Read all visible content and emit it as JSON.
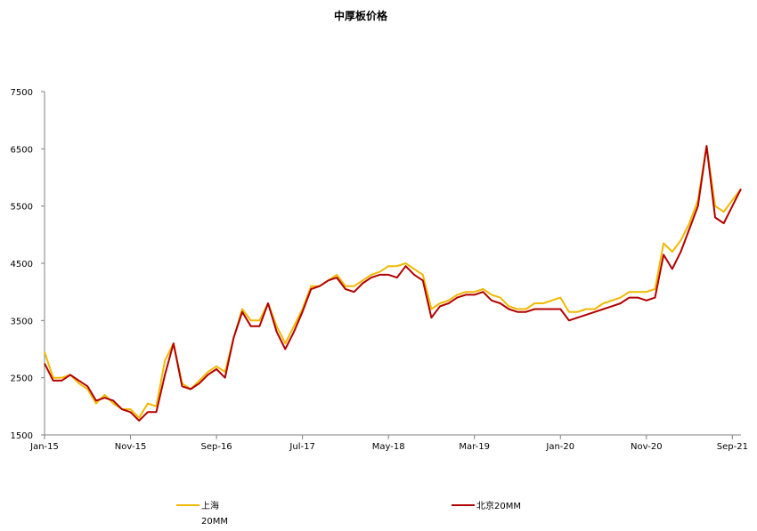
{
  "chart_data": {
    "type": "line",
    "title": "中厚板价格",
    "xlabel": "",
    "ylabel": "",
    "ylim": [
      1500,
      7500
    ],
    "yticks": [
      "7500",
      "6500",
      "5500",
      "4500",
      "3500",
      "2500",
      "1500"
    ],
    "xticks": [
      "Jan-15",
      "Nov-15",
      "Sep-16",
      "Jul-17",
      "May-18",
      "Mar-19",
      "Jan-20",
      "Nov-20",
      "Sep-21"
    ],
    "xlim": [
      "2015-01",
      "2021-10"
    ],
    "grid": false,
    "legend_position": "bottom",
    "series": [
      {
        "name": "上海20MM",
        "name_parts": [
          "上海",
          "20MM"
        ],
        "color": "#F2B800",
        "x": [
          "2015-01",
          "2015-02",
          "2015-03",
          "2015-04",
          "2015-05",
          "2015-06",
          "2015-07",
          "2015-08",
          "2015-09",
          "2015-10",
          "2015-11",
          "2015-12",
          "2016-01",
          "2016-02",
          "2016-03",
          "2016-04",
          "2016-05",
          "2016-06",
          "2016-07",
          "2016-08",
          "2016-09",
          "2016-10",
          "2016-11",
          "2016-12",
          "2017-01",
          "2017-02",
          "2017-03",
          "2017-04",
          "2017-05",
          "2017-06",
          "2017-07",
          "2017-08",
          "2017-09",
          "2017-10",
          "2017-11",
          "2017-12",
          "2018-01",
          "2018-02",
          "2018-03",
          "2018-04",
          "2018-05",
          "2018-06",
          "2018-07",
          "2018-08",
          "2018-09",
          "2018-10",
          "2018-11",
          "2018-12",
          "2019-01",
          "2019-02",
          "2019-03",
          "2019-04",
          "2019-05",
          "2019-06",
          "2019-07",
          "2019-08",
          "2019-09",
          "2019-10",
          "2019-11",
          "2019-12",
          "2020-01",
          "2020-02",
          "2020-03",
          "2020-04",
          "2020-05",
          "2020-06",
          "2020-07",
          "2020-08",
          "2020-09",
          "2020-10",
          "2020-11",
          "2020-12",
          "2021-01",
          "2021-02",
          "2021-03",
          "2021-04",
          "2021-05",
          "2021-06",
          "2021-07",
          "2021-08",
          "2021-09",
          "2021-10"
        ],
        "values": [
          2950,
          2500,
          2500,
          2550,
          2400,
          2300,
          2050,
          2200,
          2050,
          1950,
          1950,
          1800,
          2050,
          2000,
          2800,
          3100,
          2400,
          2300,
          2450,
          2600,
          2700,
          2600,
          3200,
          3700,
          3500,
          3500,
          3800,
          3400,
          3100,
          3400,
          3700,
          4100,
          4100,
          4200,
          4300,
          4100,
          4100,
          4200,
          4300,
          4350,
          4450,
          4450,
          4500,
          4400,
          4300,
          3700,
          3800,
          3850,
          3950,
          4000,
          4000,
          4050,
          3950,
          3900,
          3750,
          3700,
          3700,
          3800,
          3800,
          3850,
          3900,
          3650,
          3650,
          3700,
          3700,
          3800,
          3850,
          3900,
          4000,
          4000,
          4000,
          4050,
          4850,
          4700,
          4900,
          5200,
          5600,
          6550,
          5500,
          5400,
          5600,
          5800
        ]
      },
      {
        "name": "北京20MM",
        "color": "#B20000",
        "x": [
          "2015-01",
          "2015-02",
          "2015-03",
          "2015-04",
          "2015-05",
          "2015-06",
          "2015-07",
          "2015-08",
          "2015-09",
          "2015-10",
          "2015-11",
          "2015-12",
          "2016-01",
          "2016-02",
          "2016-03",
          "2016-04",
          "2016-05",
          "2016-06",
          "2016-07",
          "2016-08",
          "2016-09",
          "2016-10",
          "2016-11",
          "2016-12",
          "2017-01",
          "2017-02",
          "2017-03",
          "2017-04",
          "2017-05",
          "2017-06",
          "2017-07",
          "2017-08",
          "2017-09",
          "2017-10",
          "2017-11",
          "2017-12",
          "2018-01",
          "2018-02",
          "2018-03",
          "2018-04",
          "2018-05",
          "2018-06",
          "2018-07",
          "2018-08",
          "2018-09",
          "2018-10",
          "2018-11",
          "2018-12",
          "2019-01",
          "2019-02",
          "2019-03",
          "2019-04",
          "2019-05",
          "2019-06",
          "2019-07",
          "2019-08",
          "2019-09",
          "2019-10",
          "2019-11",
          "2019-12",
          "2020-01",
          "2020-02",
          "2020-03",
          "2020-04",
          "2020-05",
          "2020-06",
          "2020-07",
          "2020-08",
          "2020-09",
          "2020-10",
          "2020-11",
          "2020-12",
          "2021-01",
          "2021-02",
          "2021-03",
          "2021-04",
          "2021-05",
          "2021-06",
          "2021-07",
          "2021-08",
          "2021-09",
          "2021-10"
        ],
        "values": [
          2750,
          2450,
          2450,
          2550,
          2450,
          2350,
          2100,
          2150,
          2100,
          1950,
          1900,
          1750,
          1900,
          1900,
          2550,
          3100,
          2350,
          2300,
          2400,
          2550,
          2650,
          2500,
          3200,
          3650,
          3400,
          3400,
          3800,
          3300,
          3000,
          3300,
          3650,
          4050,
          4100,
          4200,
          4250,
          4050,
          4000,
          4150,
          4250,
          4300,
          4300,
          4250,
          4450,
          4300,
          4200,
          3550,
          3750,
          3800,
          3900,
          3950,
          3950,
          4000,
          3850,
          3800,
          3700,
          3650,
          3650,
          3700,
          3700,
          3700,
          3700,
          3500,
          3550,
          3600,
          3650,
          3700,
          3750,
          3800,
          3900,
          3900,
          3850,
          3900,
          4650,
          4400,
          4700,
          5100,
          5500,
          6550,
          5300,
          5200,
          5500,
          5800
        ]
      }
    ]
  }
}
